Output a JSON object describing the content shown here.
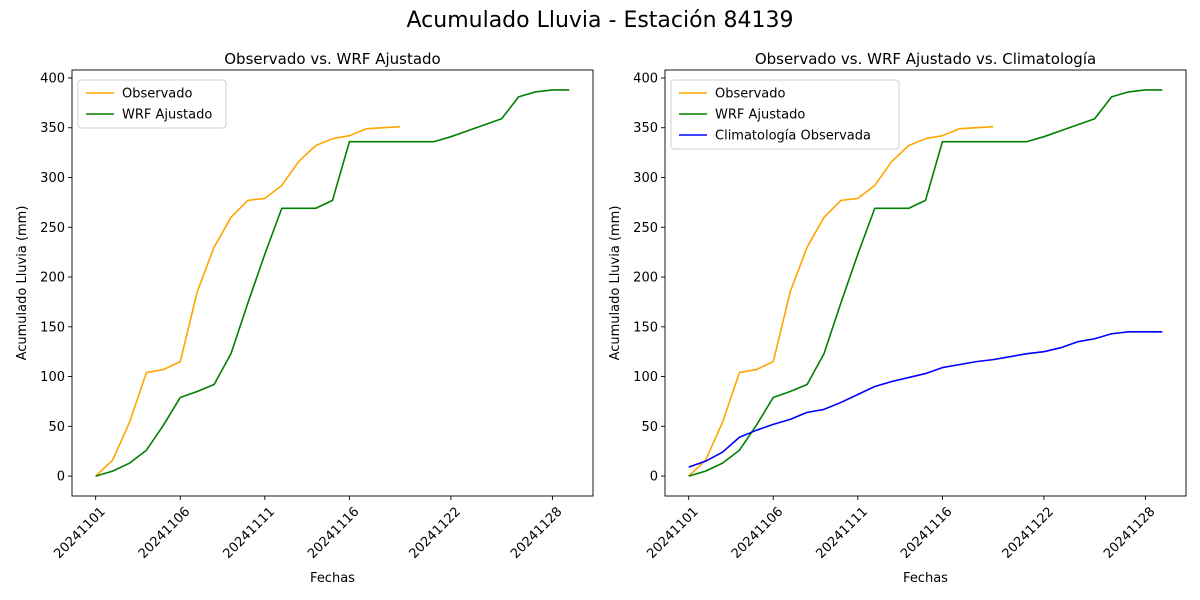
{
  "figure": {
    "title": "Acumulado Lluvia - Estación 84139"
  },
  "chart_data": [
    {
      "type": "line",
      "title": "Observado vs. WRF Ajustado",
      "xlabel": "Fechas",
      "ylabel": "Acumulado Lluvia (mm)",
      "ylim": [
        -20,
        408
      ],
      "yticks": [
        0,
        50,
        100,
        150,
        200,
        250,
        300,
        350,
        400
      ],
      "xticks": [
        "20241101",
        "20241106",
        "20241111",
        "20241116",
        "20241122",
        "20241128"
      ],
      "grid": false,
      "legend": "top-left",
      "series": [
        {
          "name": "Observado",
          "color": "#ffa500",
          "x": [
            "2024-11-01",
            "2024-11-02",
            "2024-11-03",
            "2024-11-04",
            "2024-11-05",
            "2024-11-06",
            "2024-11-07",
            "2024-11-08",
            "2024-11-09",
            "2024-11-10",
            "2024-11-11",
            "2024-11-12",
            "2024-11-13",
            "2024-11-14",
            "2024-11-15",
            "2024-11-16",
            "2024-11-17",
            "2024-11-18",
            "2024-11-19"
          ],
          "y": [
            0,
            16,
            54,
            104,
            107,
            115,
            185,
            230,
            260,
            277,
            279,
            292,
            316,
            332,
            339,
            342,
            349,
            350,
            351
          ]
        },
        {
          "name": "WRF Ajustado",
          "color": "#008000",
          "x": [
            "2024-11-01",
            "2024-11-02",
            "2024-11-03",
            "2024-11-04",
            "2024-11-05",
            "2024-11-06",
            "2024-11-07",
            "2024-11-08",
            "2024-11-09",
            "2024-11-10",
            "2024-11-11",
            "2024-11-12",
            "2024-11-13",
            "2024-11-14",
            "2024-11-15",
            "2024-11-16",
            "2024-11-17",
            "2024-11-18",
            "2024-11-19",
            "2024-11-20",
            "2024-11-21",
            "2024-11-22",
            "2024-11-23",
            "2024-11-24",
            "2024-11-25",
            "2024-11-26",
            "2024-11-27",
            "2024-11-28",
            "2024-11-29"
          ],
          "y": [
            0,
            5,
            13,
            26,
            51,
            79,
            85,
            92,
            123,
            174,
            223,
            269,
            269,
            269,
            277,
            336,
            336,
            336,
            336,
            336,
            336,
            341,
            347,
            353,
            359,
            381,
            386,
            388,
            388
          ]
        }
      ]
    },
    {
      "type": "line",
      "title": "Observado vs. WRF Ajustado vs. Climatología",
      "xlabel": "Fechas",
      "ylabel": "Acumulado Lluvia (mm)",
      "ylim": [
        -20,
        408
      ],
      "yticks": [
        0,
        50,
        100,
        150,
        200,
        250,
        300,
        350,
        400
      ],
      "xticks": [
        "20241101",
        "20241106",
        "20241111",
        "20241116",
        "20241122",
        "20241128"
      ],
      "grid": false,
      "legend": "top-left",
      "series": [
        {
          "name": "Observado",
          "color": "#ffa500",
          "x": [
            "2024-11-01",
            "2024-11-02",
            "2024-11-03",
            "2024-11-04",
            "2024-11-05",
            "2024-11-06",
            "2024-11-07",
            "2024-11-08",
            "2024-11-09",
            "2024-11-10",
            "2024-11-11",
            "2024-11-12",
            "2024-11-13",
            "2024-11-14",
            "2024-11-15",
            "2024-11-16",
            "2024-11-17",
            "2024-11-18",
            "2024-11-19"
          ],
          "y": [
            0,
            16,
            54,
            104,
            107,
            115,
            185,
            230,
            260,
            277,
            279,
            292,
            316,
            332,
            339,
            342,
            349,
            350,
            351
          ]
        },
        {
          "name": "WRF Ajustado",
          "color": "#008000",
          "x": [
            "2024-11-01",
            "2024-11-02",
            "2024-11-03",
            "2024-11-04",
            "2024-11-05",
            "2024-11-06",
            "2024-11-07",
            "2024-11-08",
            "2024-11-09",
            "2024-11-10",
            "2024-11-11",
            "2024-11-12",
            "2024-11-13",
            "2024-11-14",
            "2024-11-15",
            "2024-11-16",
            "2024-11-17",
            "2024-11-18",
            "2024-11-19",
            "2024-11-20",
            "2024-11-21",
            "2024-11-22",
            "2024-11-23",
            "2024-11-24",
            "2024-11-25",
            "2024-11-26",
            "2024-11-27",
            "2024-11-28",
            "2024-11-29"
          ],
          "y": [
            0,
            5,
            13,
            26,
            51,
            79,
            85,
            92,
            123,
            174,
            223,
            269,
            269,
            269,
            277,
            336,
            336,
            336,
            336,
            336,
            336,
            341,
            347,
            353,
            359,
            381,
            386,
            388,
            388
          ]
        },
        {
          "name": "Climatología Observada",
          "color": "#0000ff",
          "x": [
            "2024-11-01",
            "2024-11-02",
            "2024-11-03",
            "2024-11-04",
            "2024-11-05",
            "2024-11-06",
            "2024-11-07",
            "2024-11-08",
            "2024-11-09",
            "2024-11-10",
            "2024-11-11",
            "2024-11-12",
            "2024-11-13",
            "2024-11-14",
            "2024-11-15",
            "2024-11-16",
            "2024-11-17",
            "2024-11-18",
            "2024-11-19",
            "2024-11-20",
            "2024-11-21",
            "2024-11-22",
            "2024-11-23",
            "2024-11-24",
            "2024-11-25",
            "2024-11-26",
            "2024-11-27",
            "2024-11-28",
            "2024-11-29"
          ],
          "y": [
            9,
            15,
            24,
            39,
            46,
            52,
            57,
            64,
            67,
            74,
            82,
            90,
            95,
            99,
            103,
            109,
            112,
            115,
            117,
            120,
            123,
            125,
            129,
            135,
            138,
            143,
            145,
            145,
            145
          ]
        }
      ]
    }
  ]
}
